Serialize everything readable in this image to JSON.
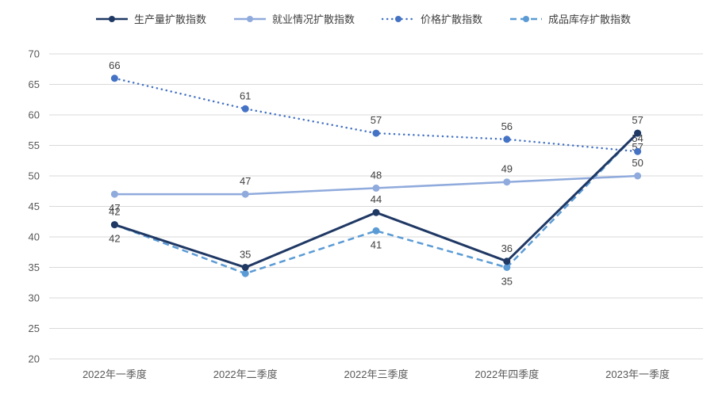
{
  "chart_data": {
    "type": "line",
    "title": "",
    "xlabel": "",
    "ylabel": "",
    "ylim": [
      20,
      70
    ],
    "ytick_step": 5,
    "grid": true,
    "legend_position": "top",
    "categories": [
      "2022年一季度",
      "2022年二季度",
      "2022年三季度",
      "2022年四季度",
      "2023年一季度"
    ],
    "series": [
      {
        "name": "生产量扩散指数",
        "values": [
          42,
          35,
          44,
          36,
          57
        ],
        "labels": [
          "42",
          "35",
          "44",
          "36",
          "57"
        ],
        "label_side": [
          "above",
          "above",
          "above",
          "above",
          "above"
        ],
        "color": "#1F3864",
        "style": "solid"
      },
      {
        "name": "就业情况扩散指数",
        "values": [
          47,
          47,
          48,
          49,
          50
        ],
        "labels": [
          "47",
          "47",
          "48",
          "49",
          "50"
        ],
        "label_side": [
          "below",
          "above",
          "above",
          "above",
          "above"
        ],
        "color": "#8FAADC",
        "style": "solid"
      },
      {
        "name": "价格扩散指数",
        "values": [
          66,
          61,
          57,
          56,
          54
        ],
        "labels": [
          "66",
          "61",
          "57",
          "56",
          "54"
        ],
        "label_side": [
          "above",
          "above",
          "above",
          "above",
          "above"
        ],
        "color": "#4472C4",
        "style": "dotted"
      },
      {
        "name": "成品库存扩散指数",
        "values": [
          42,
          34,
          41,
          35,
          57
        ],
        "labels": [
          "42",
          "",
          "41",
          "35",
          "57"
        ],
        "label_side": [
          "below",
          "below",
          "below",
          "below",
          "below"
        ],
        "color": "#5B9BD5",
        "style": "dashed"
      }
    ],
    "colors": {
      "grid": "#D9D9D9",
      "tick_text": "#595959",
      "label_text": "#404040",
      "background": "#FFFFFF"
    }
  }
}
